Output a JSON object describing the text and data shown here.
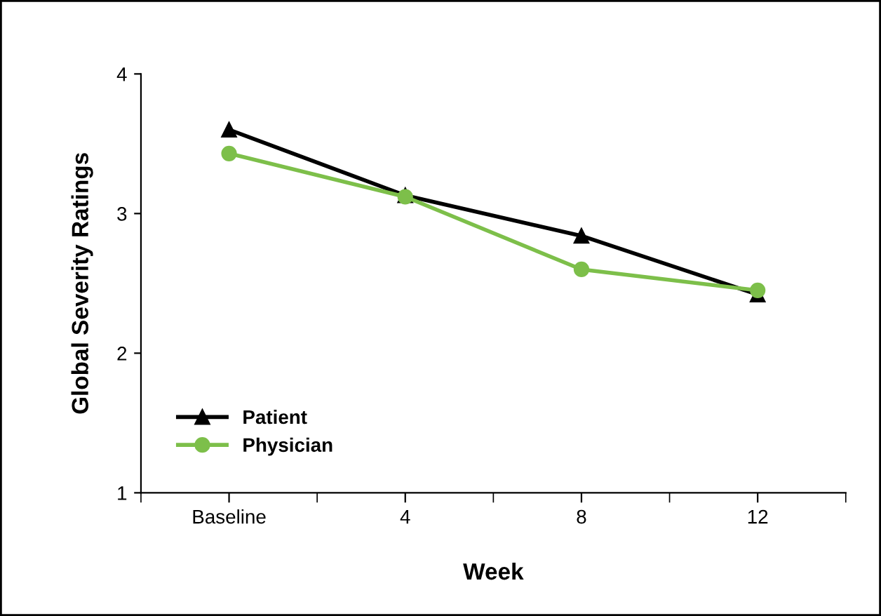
{
  "chart_data": {
    "type": "line",
    "xlabel": "Week",
    "ylabel": "Global Severity Ratings",
    "categories": [
      "Baseline",
      "4",
      "8",
      "12"
    ],
    "series": [
      {
        "name": "Patient",
        "color": "#000000",
        "marker": "triangle",
        "values": [
          3.6,
          3.13,
          2.84,
          2.42
        ]
      },
      {
        "name": "Physician",
        "color": "#7dbf4a",
        "marker": "circle",
        "values": [
          3.43,
          3.12,
          2.6,
          2.45
        ]
      }
    ],
    "ylim": [
      1,
      4
    ],
    "yticks": [
      1,
      2,
      3,
      4
    ],
    "grid": false,
    "legend": "bottom left"
  }
}
